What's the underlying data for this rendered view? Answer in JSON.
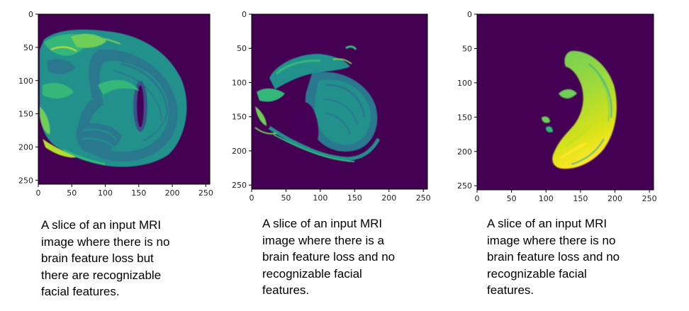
{
  "colors": {
    "background": "#440154",
    "tissue_dark": "#2a788e",
    "tissue_mid": "#21918c",
    "tissue_light": "#35b779",
    "tissue_bright": "#6ece58",
    "tissue_peak": "#c5e021",
    "tissue_max": "#fde725"
  },
  "panels": [
    {
      "image_desc": "mri-slice-full-head",
      "x_ticks": [
        "0",
        "50",
        "100",
        "150",
        "200",
        "250"
      ],
      "y_ticks": [
        "0",
        "50",
        "100",
        "150",
        "200",
        "250"
      ],
      "caption": "A slice of an input MRI\nimage where there is no\nbrain feature loss but\nthere are recognizable\nfacial features."
    },
    {
      "image_desc": "mri-slice-partial-brain",
      "x_ticks": [
        "0",
        "50",
        "100",
        "150",
        "200",
        "250"
      ],
      "y_ticks": [
        "0",
        "50",
        "100",
        "150",
        "200",
        "250"
      ],
      "caption": "A slice of an input MRI\nimage where there is a\nbrain feature loss and no\nrecognizable facial\nfeatures."
    },
    {
      "image_desc": "mri-slice-brain-only",
      "x_ticks": [
        "0",
        "50",
        "100",
        "150",
        "200",
        "250"
      ],
      "y_ticks": [
        "0",
        "50",
        "100",
        "150",
        "200",
        "250"
      ],
      "caption": "A slice of an input MRI\nimage where there is no\nbrain feature loss and no\nrecognizable facial\nfeatures."
    }
  ]
}
